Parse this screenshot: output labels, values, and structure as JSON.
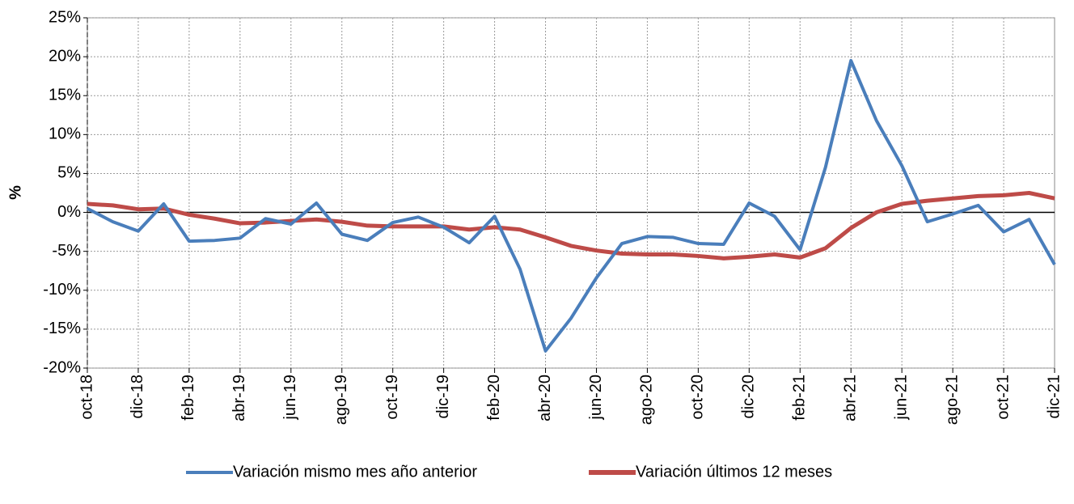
{
  "chart_data": {
    "type": "line",
    "y_label": "%",
    "categories": [
      "oct-18",
      null,
      "dic-18",
      null,
      "feb-19",
      null,
      "abr-19",
      null,
      "jun-19",
      null,
      "ago-19",
      null,
      "oct-19",
      null,
      "dic-19",
      null,
      "feb-20",
      null,
      "abr-20",
      null,
      "jun-20",
      null,
      "ago-20",
      null,
      "oct-20",
      null,
      "dic-20",
      null,
      "feb-21",
      null,
      "abr-21",
      null,
      "jun-21",
      null,
      "ago-21",
      null,
      "oct-21",
      null,
      "dic-21"
    ],
    "series": [
      {
        "name": "Variación mismo mes año anterior",
        "color": "#4a7ebb",
        "values": [
          0.5,
          -1.2,
          -2.4,
          1.1,
          -3.7,
          -3.6,
          -3.3,
          -0.8,
          -1.5,
          1.2,
          -2.8,
          -3.6,
          -1.3,
          -0.6,
          -1.9,
          -3.9,
          -0.5,
          -7.3,
          -17.8,
          -13.6,
          -8.4,
          -4.0,
          -3.1,
          -3.2,
          -4.0,
          -4.1,
          1.2,
          -0.5,
          -4.8,
          5.8,
          19.5,
          11.8,
          6.0,
          -1.2,
          -0.2,
          0.9,
          -2.5,
          -0.9,
          -6.7
        ]
      },
      {
        "name": "Variación últimos 12 meses",
        "color": "#be4b48",
        "values": [
          1.1,
          0.9,
          0.4,
          0.5,
          -0.3,
          -0.8,
          -1.4,
          -1.3,
          -1.1,
          -0.9,
          -1.2,
          -1.7,
          -1.8,
          -1.8,
          -1.8,
          -2.2,
          -1.9,
          -2.2,
          -3.2,
          -4.3,
          -4.9,
          -5.3,
          -5.4,
          -5.4,
          -5.6,
          -5.9,
          -5.7,
          -5.4,
          -5.8,
          -4.6,
          -2.0,
          0.0,
          1.1,
          1.5,
          1.8,
          2.1,
          2.2,
          2.5,
          1.8
        ]
      }
    ],
    "ylim": [
      -20,
      25
    ],
    "yticks": [
      {
        "value": -20,
        "label": "-20%"
      },
      {
        "value": -15,
        "label": "-15%"
      },
      {
        "value": -10,
        "label": "-10%"
      },
      {
        "value": -5,
        "label": "-5%"
      },
      {
        "value": 0,
        "label": "0%"
      },
      {
        "value": 5,
        "label": "5%"
      },
      {
        "value": 10,
        "label": "10%"
      },
      {
        "value": 15,
        "label": "15%"
      },
      {
        "value": 20,
        "label": "20%"
      },
      {
        "value": 25,
        "label": "25%"
      }
    ],
    "grid": true,
    "legend": "bottom"
  }
}
